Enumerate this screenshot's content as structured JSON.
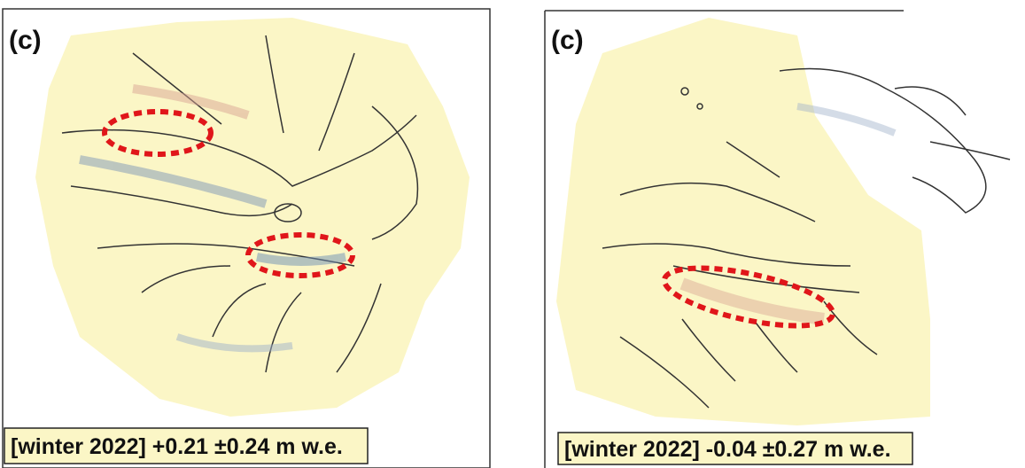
{
  "panels": [
    {
      "label": "(c)",
      "caption": "[winter 2022] +0.21 ±0.24 m w.e."
    },
    {
      "label": "(c)",
      "caption": "[winter 2022] -0.04 ±0.27 m w.e."
    }
  ]
}
